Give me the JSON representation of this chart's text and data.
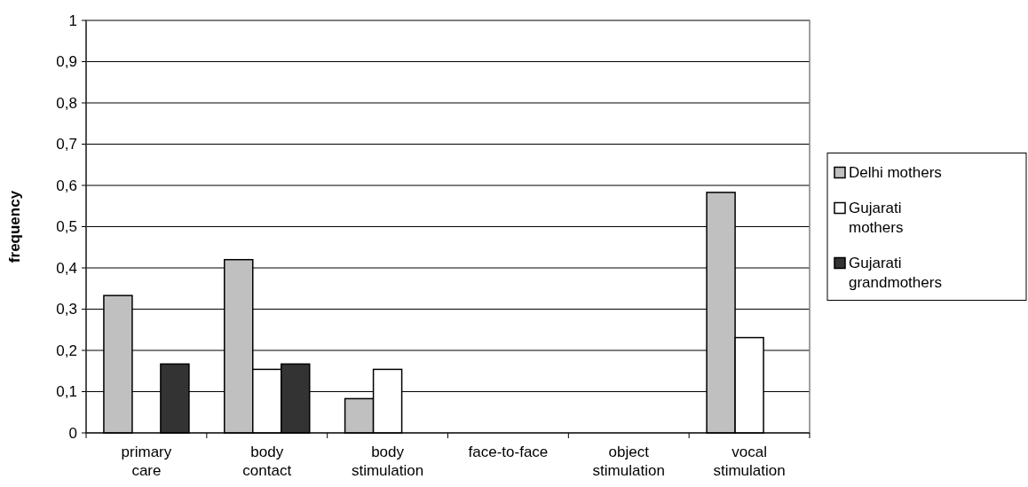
{
  "chart_data": {
    "type": "bar",
    "ylabel": "frequency",
    "categories": [
      "primary care",
      "body contact",
      "body stimulation",
      "face-to-face",
      "object stimulation",
      "vocal stimulation"
    ],
    "series": [
      {
        "name": "Delhi mothers",
        "color": "#c0c0c0",
        "values": [
          0.333,
          0.42,
          0.083,
          0,
          0,
          0.583
        ]
      },
      {
        "name": "Gujarati mothers",
        "color": "#ffffff",
        "values": [
          0,
          0.154,
          0.154,
          0,
          0,
          0.231
        ]
      },
      {
        "name": "Gujarati grandmothers",
        "color": "#333333",
        "values": [
          0.167,
          0.167,
          0,
          0,
          0,
          0
        ]
      }
    ],
    "ylim": [
      0,
      1
    ],
    "yticks": [
      0,
      {
        "value": 0.1,
        "label": "0,1"
      },
      {
        "value": 0.2,
        "label": "0,2"
      },
      {
        "value": 0.3,
        "label": "0,3"
      },
      {
        "value": 0.4,
        "label": "0,4"
      },
      {
        "value": 0.5,
        "label": "0,5"
      },
      {
        "value": 0.6,
        "label": "0,6"
      },
      {
        "value": 0.7,
        "label": "0,7"
      },
      {
        "value": 0.8,
        "label": "0,8"
      },
      {
        "value": 0.9,
        "label": "0,9"
      },
      1
    ],
    "grid": "y",
    "legend": "right"
  }
}
